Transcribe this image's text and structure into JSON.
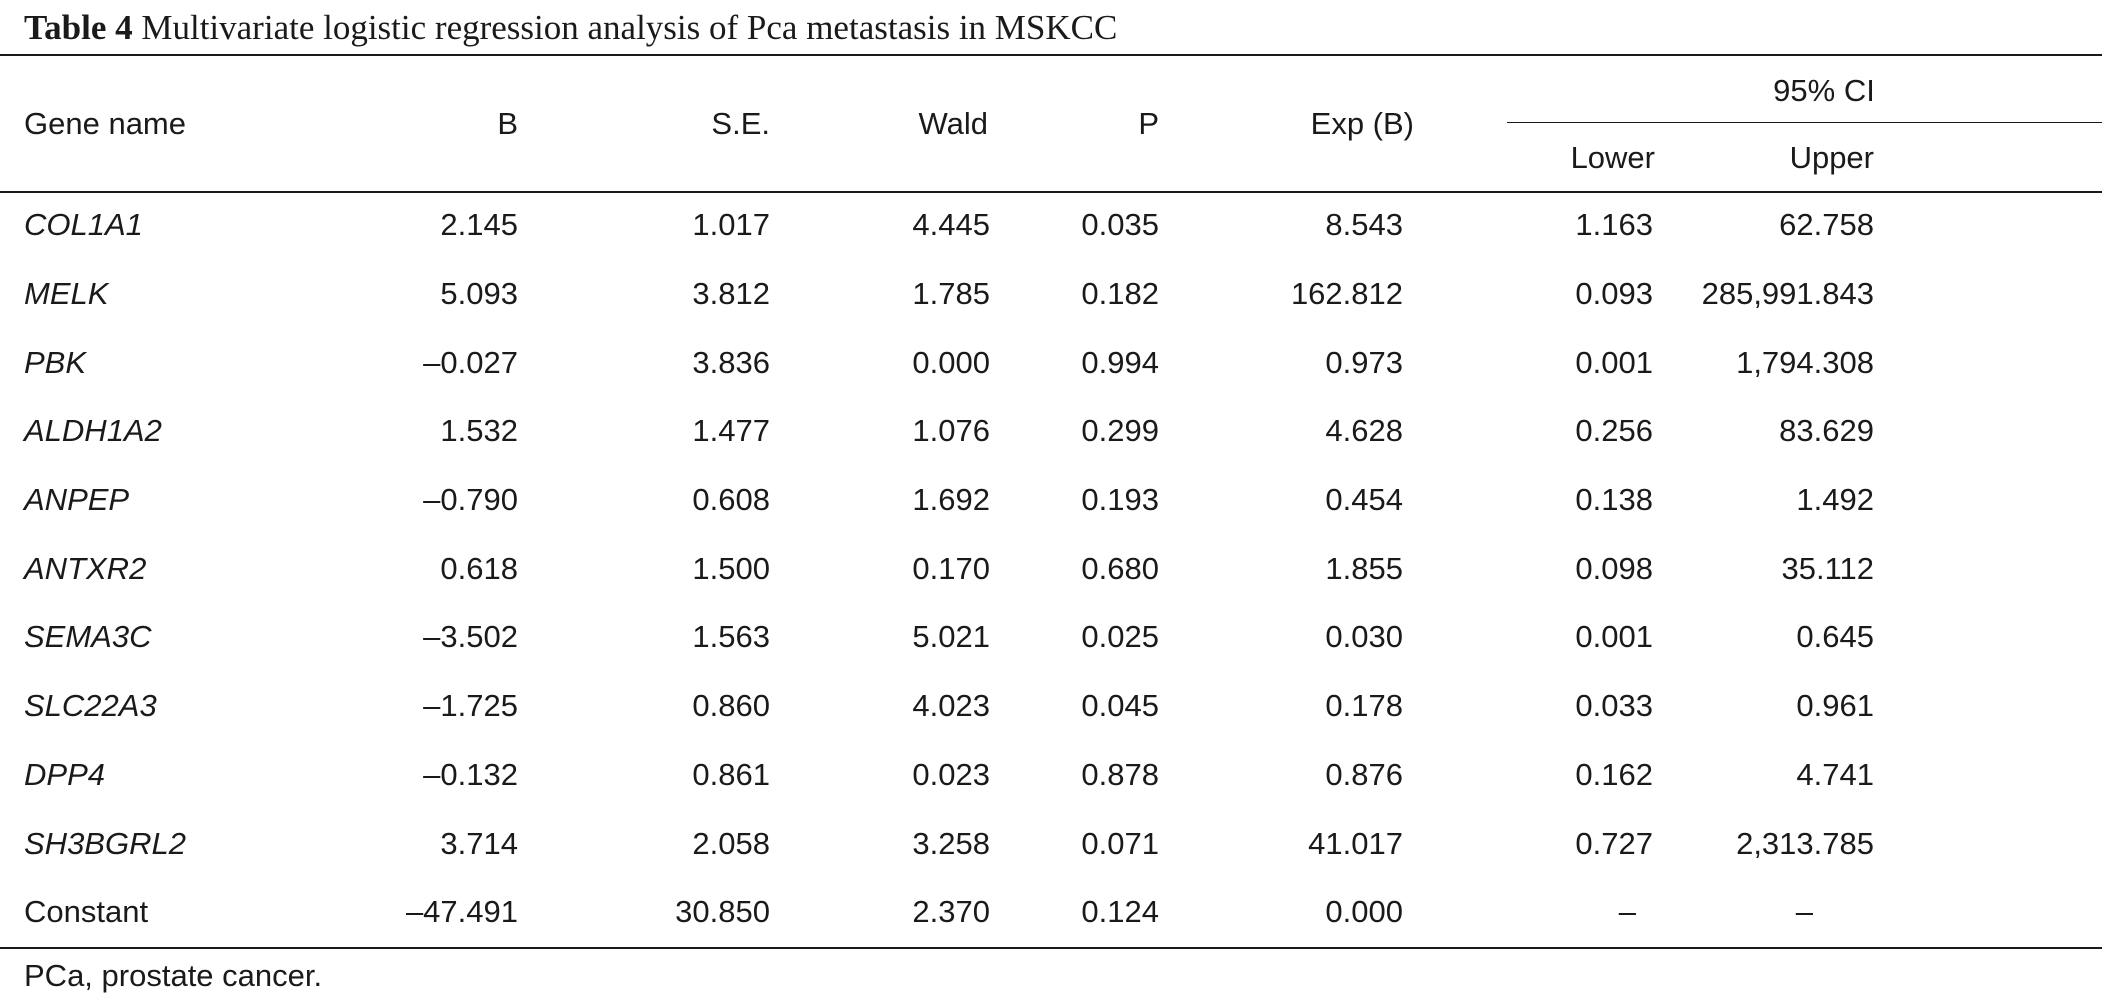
{
  "caption": {
    "label": "Table 4",
    "title": "Multivariate logistic regression analysis of Pca metastasis in MSKCC"
  },
  "headers": {
    "gene_name": "Gene name",
    "b": "B",
    "se": "S.E.",
    "wald": "Wald",
    "p": "P",
    "expb": "Exp (B)",
    "ci": "95% CI",
    "lower": "Lower",
    "upper": "Upper"
  },
  "rows": [
    {
      "name": "COL1A1",
      "italic": true,
      "b": "2.145",
      "se": "1.017",
      "wald": "4.445",
      "p": "0.035",
      "expb": "8.543",
      "lower": "1.163",
      "upper": "62.758"
    },
    {
      "name": "MELK",
      "italic": true,
      "b": "5.093",
      "se": "3.812",
      "wald": "1.785",
      "p": "0.182",
      "expb": "162.812",
      "lower": "0.093",
      "upper": "285,991.843"
    },
    {
      "name": "PBK",
      "italic": true,
      "b": "–0.027",
      "se": "3.836",
      "wald": "0.000",
      "p": "0.994",
      "expb": "0.973",
      "lower": "0.001",
      "upper": "1,794.308"
    },
    {
      "name": "ALDH1A2",
      "italic": true,
      "b": "1.532",
      "se": "1.477",
      "wald": "1.076",
      "p": "0.299",
      "expb": "4.628",
      "lower": "0.256",
      "upper": "83.629"
    },
    {
      "name": "ANPEP",
      "italic": true,
      "b": "–0.790",
      "se": "0.608",
      "wald": "1.692",
      "p": "0.193",
      "expb": "0.454",
      "lower": "0.138",
      "upper": "1.492"
    },
    {
      "name": "ANTXR2",
      "italic": true,
      "b": "0.618",
      "se": "1.500",
      "wald": "0.170",
      "p": "0.680",
      "expb": "1.855",
      "lower": "0.098",
      "upper": "35.112"
    },
    {
      "name": "SEMA3C",
      "italic": true,
      "b": "–3.502",
      "se": "1.563",
      "wald": "5.021",
      "p": "0.025",
      "expb": "0.030",
      "lower": "0.001",
      "upper": "0.645"
    },
    {
      "name": "SLC22A3",
      "italic": true,
      "b": "–1.725",
      "se": "0.860",
      "wald": "4.023",
      "p": "0.045",
      "expb": "0.178",
      "lower": "0.033",
      "upper": "0.961"
    },
    {
      "name": "DPP4",
      "italic": true,
      "b": "–0.132",
      "se": "0.861",
      "wald": "0.023",
      "p": "0.878",
      "expb": "0.876",
      "lower": "0.162",
      "upper": "4.741"
    },
    {
      "name": "SH3BGRL2",
      "italic": true,
      "b": "3.714",
      "se": "2.058",
      "wald": "3.258",
      "p": "0.071",
      "expb": "41.017",
      "lower": "0.727",
      "upper": "2,313.785"
    },
    {
      "name": "Constant",
      "italic": false,
      "b": "–47.491",
      "se": "30.850",
      "wald": "2.370",
      "p": "0.124",
      "expb": "0.000",
      "lower": "–",
      "upper": "–"
    }
  ],
  "footnote": "PCa, prostate cancer."
}
